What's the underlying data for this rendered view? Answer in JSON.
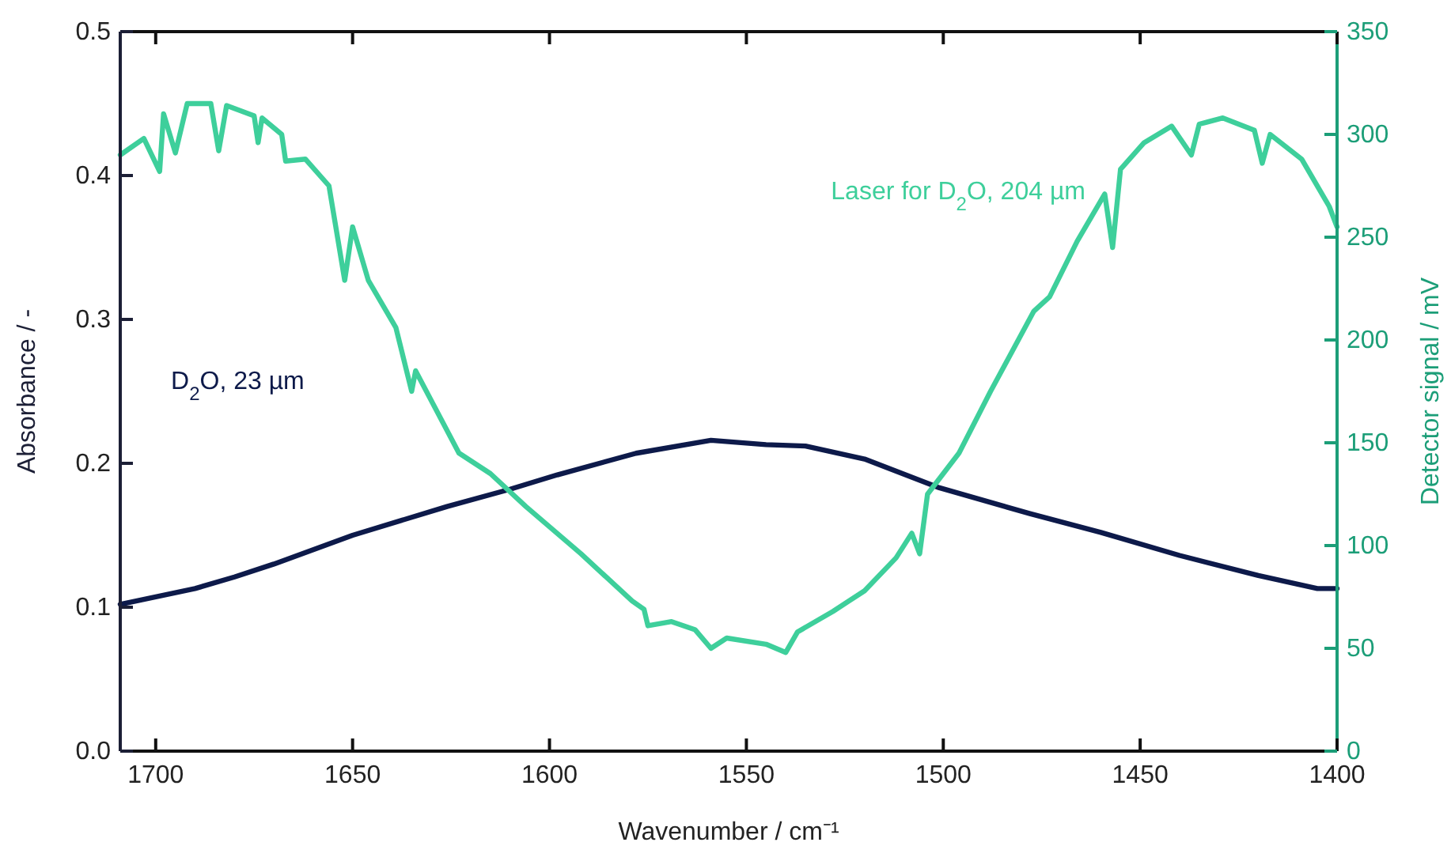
{
  "chart_data": {
    "type": "line",
    "xlabel": "Wavenumber / cm⁻¹",
    "ylabel": "Absorbance / -",
    "y2label": "Detector signal / mV",
    "xlim": [
      1709,
      1400
    ],
    "xticks": [
      1700,
      1650,
      1600,
      1550,
      1500,
      1450,
      1400
    ],
    "ylim": [
      0,
      0.5
    ],
    "yticks": [
      {
        "value": 0,
        "label": "0.0"
      },
      0.1,
      0.2,
      0.3,
      0.4,
      0.5
    ],
    "y2lim": [
      0,
      350
    ],
    "y2ticks": [
      0,
      50,
      100,
      150,
      200,
      250,
      300,
      350
    ],
    "grid": false,
    "marker": "none",
    "line_style": "solid",
    "series": [
      {
        "name": "D$_{2}$O, 23 µm",
        "color": "#0d1a4a",
        "x": [
          1709,
          1690,
          1680,
          1670,
          1650,
          1626,
          1610,
          1598,
          1578,
          1559,
          1545,
          1535,
          1520,
          1501,
          1478,
          1460,
          1440,
          1420,
          1405,
          1400
        ],
        "values": [
          0.102,
          0.113,
          0.121,
          0.13,
          0.15,
          0.17,
          0.182,
          0.192,
          0.207,
          0.216,
          0.213,
          0.212,
          0.203,
          0.183,
          0.165,
          0.152,
          0.136,
          0.122,
          0.113,
          0.113
        ]
      },
      {
        "name": "Laser for D$_{2}$O, 204 µm",
        "color": "#3ecf9b",
        "axis": "y2",
        "x": [
          1709,
          1703,
          1699,
          1698,
          1695,
          1692,
          1686,
          1684,
          1682,
          1675,
          1674,
          1673,
          1668,
          1667,
          1662,
          1656,
          1652,
          1650,
          1646,
          1639,
          1635,
          1634,
          1623,
          1615,
          1606,
          1592,
          1579,
          1576,
          1575,
          1569,
          1563,
          1559,
          1555,
          1545,
          1540,
          1537,
          1528,
          1520,
          1512,
          1508,
          1506,
          1504,
          1500,
          1496,
          1488,
          1477,
          1473,
          1466,
          1459,
          1457,
          1455,
          1449,
          1442,
          1437,
          1435,
          1429,
          1421,
          1419,
          1417,
          1409,
          1402,
          1400
        ],
        "values": [
          290,
          298,
          282,
          310,
          291,
          315,
          315,
          292,
          314,
          309,
          296,
          308,
          300,
          287,
          288,
          275,
          229,
          255,
          229,
          206,
          175,
          185,
          145,
          135,
          119,
          96,
          73,
          69,
          61,
          63,
          59,
          50,
          55,
          52,
          48,
          58,
          68,
          78,
          94,
          106,
          96,
          125,
          135,
          145,
          175,
          214,
          221,
          248,
          271,
          245,
          283,
          296,
          304,
          290,
          305,
          308,
          302,
          286,
          300,
          288,
          265,
          255
        ]
      }
    ]
  }
}
